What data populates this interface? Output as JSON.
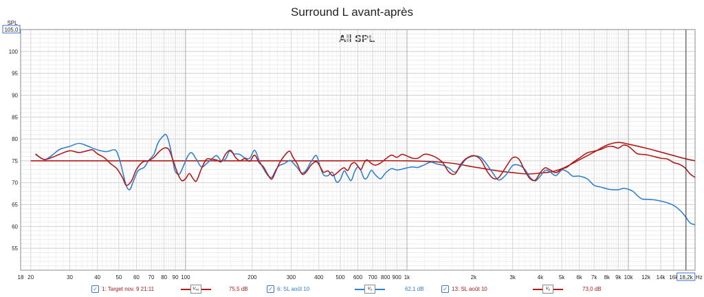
{
  "chart_data": {
    "type": "line",
    "title": "Surround L avant-après",
    "subtitle": "All SPL",
    "ylabel": "SPL",
    "xlabel": "Hz",
    "x_scale": "log",
    "xlim": [
      18,
      20000
    ],
    "ylim": [
      50,
      105
    ],
    "y_top_label": "105,0",
    "y_ticks": [
      55,
      60,
      65,
      70,
      75,
      80,
      85,
      90,
      95,
      100
    ],
    "x_tick_values": [
      18,
      20,
      30,
      40,
      50,
      60,
      70,
      80,
      90,
      100,
      200,
      300,
      400,
      500,
      600,
      700,
      800,
      900,
      1000,
      2000,
      3000,
      4000,
      5000,
      6000,
      7000,
      8000,
      9000,
      10000,
      12000,
      14000,
      16000,
      18200
    ],
    "x_tick_labels": [
      "18",
      "20",
      "30",
      "40",
      "50",
      "60",
      "70",
      "80",
      "90",
      "100",
      "200",
      "300",
      "400",
      "500",
      "600",
      "700",
      "800",
      "900",
      "1k",
      "2k",
      "3k",
      "4k",
      "5k",
      "6k",
      "7k",
      "8k",
      "9k",
      "10k",
      "12k",
      "14k",
      "16k",
      "18,2k"
    ],
    "cursor_x": 18200,
    "grid": true,
    "series": [
      {
        "name": "Target nov. 9 21:11",
        "color": "#b01818",
        "points": [
          [
            20,
            75.0
          ],
          [
            25,
            75.0
          ],
          [
            40,
            75.0
          ],
          [
            50,
            75.0
          ],
          [
            100,
            75.0
          ],
          [
            200,
            75.0
          ],
          [
            500,
            75.0
          ],
          [
            1000,
            75.0
          ],
          [
            1500,
            74.6
          ],
          [
            2000,
            73.6
          ],
          [
            2500,
            72.8
          ],
          [
            3000,
            72.3
          ],
          [
            3500,
            72.0
          ],
          [
            4000,
            72.2
          ],
          [
            4500,
            72.5
          ],
          [
            5000,
            73.2
          ],
          [
            5500,
            74.2
          ],
          [
            6000,
            75.2
          ],
          [
            7000,
            77.0
          ],
          [
            8000,
            78.6
          ],
          [
            9000,
            79.2
          ],
          [
            10000,
            78.8
          ],
          [
            12000,
            77.9
          ],
          [
            14000,
            77.0
          ],
          [
            16000,
            76.2
          ],
          [
            18000,
            75.5
          ],
          [
            20000,
            75.0
          ]
        ]
      },
      {
        "name": "SL août 10",
        "color": "#2f7fcf",
        "points": [
          [
            21,
            76.6
          ],
          [
            23,
            75.3
          ],
          [
            25,
            76.3
          ],
          [
            27,
            77.6
          ],
          [
            30,
            78.3
          ],
          [
            33,
            79.0
          ],
          [
            36,
            78.4
          ],
          [
            40,
            77.5
          ],
          [
            44,
            77.1
          ],
          [
            48,
            77.5
          ],
          [
            50,
            75.8
          ],
          [
            52,
            72.5
          ],
          [
            54,
            69.3
          ],
          [
            56,
            68.4
          ],
          [
            58,
            70.2
          ],
          [
            61,
            72.7
          ],
          [
            65,
            73.5
          ],
          [
            68,
            75.0
          ],
          [
            72,
            76.5
          ],
          [
            75,
            79.0
          ],
          [
            79,
            80.6
          ],
          [
            82,
            80.9
          ],
          [
            85,
            78.4
          ],
          [
            88,
            74.5
          ],
          [
            90,
            72.5
          ],
          [
            94,
            72.0
          ],
          [
            98,
            73.9
          ],
          [
            103,
            76.3
          ],
          [
            107,
            76.8
          ],
          [
            112,
            75.3
          ],
          [
            118,
            73.6
          ],
          [
            124,
            74.3
          ],
          [
            130,
            75.2
          ],
          [
            138,
            76.2
          ],
          [
            145,
            75.0
          ],
          [
            152,
            75.5
          ],
          [
            158,
            77.2
          ],
          [
            165,
            76.6
          ],
          [
            175,
            76.5
          ],
          [
            185,
            75.7
          ],
          [
            195,
            75.6
          ],
          [
            205,
            77.4
          ],
          [
            215,
            75.1
          ],
          [
            225,
            73.2
          ],
          [
            235,
            71.7
          ],
          [
            245,
            71.2
          ],
          [
            255,
            72.8
          ],
          [
            265,
            73.9
          ],
          [
            280,
            74.4
          ],
          [
            295,
            75.1
          ],
          [
            305,
            74.6
          ],
          [
            320,
            73.4
          ],
          [
            335,
            72.2
          ],
          [
            350,
            72.8
          ],
          [
            370,
            74.9
          ],
          [
            390,
            76.2
          ],
          [
            405,
            73.7
          ],
          [
            420,
            71.8
          ],
          [
            440,
            71.6
          ],
          [
            460,
            72.4
          ],
          [
            480,
            70.2
          ],
          [
            500,
            70.7
          ],
          [
            520,
            72.7
          ],
          [
            540,
            71.5
          ],
          [
            560,
            70.5
          ],
          [
            580,
            72.5
          ],
          [
            600,
            73.6
          ],
          [
            620,
            72.7
          ],
          [
            640,
            71.0
          ],
          [
            660,
            71.1
          ],
          [
            690,
            72.8
          ],
          [
            720,
            71.8
          ],
          [
            760,
            70.9
          ],
          [
            800,
            72.2
          ],
          [
            850,
            73.2
          ],
          [
            900,
            72.9
          ],
          [
            950,
            73.1
          ],
          [
            1000,
            73.4
          ],
          [
            1060,
            73.6
          ],
          [
            1120,
            73.5
          ],
          [
            1200,
            74.1
          ],
          [
            1280,
            74.7
          ],
          [
            1360,
            74.3
          ],
          [
            1450,
            74.0
          ],
          [
            1550,
            73.3
          ],
          [
            1650,
            72.4
          ],
          [
            1750,
            73.8
          ],
          [
            1850,
            75.4
          ],
          [
            2000,
            76.1
          ],
          [
            2150,
            75.8
          ],
          [
            2300,
            74.1
          ],
          [
            2450,
            72.1
          ],
          [
            2600,
            70.6
          ],
          [
            2800,
            71.8
          ],
          [
            3000,
            73.9
          ],
          [
            3200,
            74.0
          ],
          [
            3400,
            73.1
          ],
          [
            3600,
            71.2
          ],
          [
            3800,
            70.4
          ],
          [
            4000,
            71.5
          ],
          [
            4200,
            72.8
          ],
          [
            4400,
            72.6
          ],
          [
            4700,
            71.6
          ],
          [
            5000,
            72.9
          ],
          [
            5300,
            72.5
          ],
          [
            5600,
            71.5
          ],
          [
            6000,
            71.5
          ],
          [
            6500,
            70.9
          ],
          [
            7000,
            69.4
          ],
          [
            7500,
            69.0
          ],
          [
            8000,
            68.6
          ],
          [
            8500,
            68.4
          ],
          [
            9000,
            68.4
          ],
          [
            9500,
            68.7
          ],
          [
            10000,
            68.5
          ],
          [
            10500,
            68.0
          ],
          [
            11000,
            67.0
          ],
          [
            11500,
            66.3
          ],
          [
            12000,
            66.2
          ],
          [
            13000,
            66.1
          ],
          [
            14000,
            65.8
          ],
          [
            15000,
            65.4
          ],
          [
            16000,
            64.8
          ],
          [
            17000,
            63.8
          ],
          [
            18000,
            62.4
          ],
          [
            19000,
            60.8
          ],
          [
            20000,
            60.4
          ]
        ]
      },
      {
        "name": "SL août 10",
        "color": "#b01818",
        "points": [
          [
            21,
            76.5
          ],
          [
            23,
            75.3
          ],
          [
            25,
            75.8
          ],
          [
            27,
            76.5
          ],
          [
            30,
            77.3
          ],
          [
            33,
            76.9
          ],
          [
            36,
            77.3
          ],
          [
            38,
            77.5
          ],
          [
            40,
            76.6
          ],
          [
            43,
            75.7
          ],
          [
            46,
            74.3
          ],
          [
            49,
            73.2
          ],
          [
            52,
            71.1
          ],
          [
            54,
            69.4
          ],
          [
            57,
            70.4
          ],
          [
            60,
            73.0
          ],
          [
            64,
            74.7
          ],
          [
            68,
            75.0
          ],
          [
            72,
            75.8
          ],
          [
            76,
            77.1
          ],
          [
            80,
            77.9
          ],
          [
            84,
            77.6
          ],
          [
            88,
            75.0
          ],
          [
            92,
            72.2
          ],
          [
            96,
            70.5
          ],
          [
            100,
            70.9
          ],
          [
            104,
            72.1
          ],
          [
            108,
            71.0
          ],
          [
            112,
            70.4
          ],
          [
            118,
            73.2
          ],
          [
            124,
            75.3
          ],
          [
            130,
            75.4
          ],
          [
            138,
            75.2
          ],
          [
            145,
            74.8
          ],
          [
            152,
            76.6
          ],
          [
            160,
            77.4
          ],
          [
            168,
            75.8
          ],
          [
            176,
            75.0
          ],
          [
            185,
            75.5
          ],
          [
            195,
            74.9
          ],
          [
            205,
            76.3
          ],
          [
            215,
            74.6
          ],
          [
            225,
            73.6
          ],
          [
            235,
            71.9
          ],
          [
            245,
            70.8
          ],
          [
            255,
            72.5
          ],
          [
            265,
            74.4
          ],
          [
            280,
            76.2
          ],
          [
            295,
            77.2
          ],
          [
            305,
            75.9
          ],
          [
            320,
            74.2
          ],
          [
            335,
            72.0
          ],
          [
            350,
            72.4
          ],
          [
            370,
            74.1
          ],
          [
            390,
            74.8
          ],
          [
            405,
            73.7
          ],
          [
            420,
            72.4
          ],
          [
            440,
            72.7
          ],
          [
            460,
            71.6
          ],
          [
            480,
            72.1
          ],
          [
            500,
            72.9
          ],
          [
            520,
            73.4
          ],
          [
            540,
            72.8
          ],
          [
            560,
            74.2
          ],
          [
            580,
            74.6
          ],
          [
            600,
            73.8
          ],
          [
            620,
            73.0
          ],
          [
            640,
            74.5
          ],
          [
            660,
            75.2
          ],
          [
            690,
            74.4
          ],
          [
            720,
            74.0
          ],
          [
            760,
            74.5
          ],
          [
            800,
            75.4
          ],
          [
            850,
            76.3
          ],
          [
            900,
            75.8
          ],
          [
            950,
            76.5
          ],
          [
            1000,
            76.1
          ],
          [
            1060,
            75.6
          ],
          [
            1120,
            75.6
          ],
          [
            1200,
            76.5
          ],
          [
            1280,
            76.3
          ],
          [
            1360,
            75.7
          ],
          [
            1450,
            74.6
          ],
          [
            1550,
            72.4
          ],
          [
            1650,
            72.0
          ],
          [
            1750,
            74.2
          ],
          [
            1850,
            75.5
          ],
          [
            2000,
            76.2
          ],
          [
            2150,
            75.3
          ],
          [
            2300,
            72.6
          ],
          [
            2450,
            71.0
          ],
          [
            2600,
            71.2
          ],
          [
            2800,
            73.6
          ],
          [
            3000,
            75.7
          ],
          [
            3200,
            75.4
          ],
          [
            3400,
            72.8
          ],
          [
            3600,
            70.9
          ],
          [
            3800,
            70.6
          ],
          [
            4000,
            72.3
          ],
          [
            4200,
            73.4
          ],
          [
            4400,
            73.0
          ],
          [
            4700,
            72.3
          ],
          [
            5000,
            73.1
          ],
          [
            5300,
            73.6
          ],
          [
            5600,
            74.6
          ],
          [
            6000,
            75.6
          ],
          [
            6500,
            76.8
          ],
          [
            7000,
            77.2
          ],
          [
            7500,
            77.6
          ],
          [
            8000,
            78.2
          ],
          [
            8500,
            78.3
          ],
          [
            9000,
            77.9
          ],
          [
            9500,
            78.6
          ],
          [
            10000,
            78.3
          ],
          [
            10500,
            77.4
          ],
          [
            11000,
            76.6
          ],
          [
            12000,
            76.4
          ],
          [
            13000,
            76.0
          ],
          [
            14000,
            75.6
          ],
          [
            15000,
            75.4
          ],
          [
            16000,
            74.6
          ],
          [
            17000,
            74.2
          ],
          [
            18000,
            73.4
          ],
          [
            19000,
            72.0
          ],
          [
            20000,
            71.2
          ]
        ]
      }
    ]
  },
  "legend": {
    "items": [
      {
        "checkbox": "✓",
        "label": "1: Target nov. 9 21:11",
        "smoothing": "¹⁄₄₈",
        "value": "75,5 dB",
        "color": "#b01818"
      },
      {
        "checkbox": "✓",
        "label": "6: SL août 10",
        "smoothing": "¹⁄₆",
        "value": "62,1 dB",
        "color": "#2f7fcf"
      },
      {
        "checkbox": "✓",
        "label": "13: SL août 10",
        "smoothing": "¹⁄₆",
        "value": "73,0 dB",
        "color": "#b01818"
      }
    ]
  }
}
